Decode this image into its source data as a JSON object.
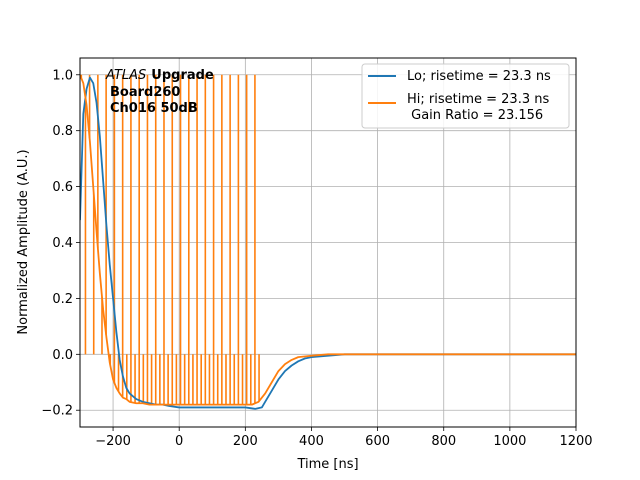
{
  "chart_data": {
    "type": "line",
    "xlabel": "Time [ns]",
    "ylabel": "Normalized Amplitude (A.U.)",
    "xlim": [
      -300,
      1200
    ],
    "ylim": [
      -0.26,
      1.06
    ],
    "xticks": [
      -200,
      0,
      200,
      400,
      600,
      800,
      1000,
      1200
    ],
    "xtick_labels": [
      "−200",
      "0",
      "200",
      "400",
      "600",
      "800",
      "1000",
      "1200"
    ],
    "yticks": [
      -0.2,
      0.0,
      0.2,
      0.4,
      0.6,
      0.8,
      1.0
    ],
    "ytick_labels": [
      "−0.2",
      "0.0",
      "0.2",
      "0.4",
      "0.6",
      "0.8",
      "1.0"
    ],
    "grid": true,
    "legend_position": "top-right",
    "annotation": {
      "italic": "ATLAS",
      "bold": "Upgrade",
      "line2": "Board260",
      "line3": "Ch016 50dB"
    },
    "series": [
      {
        "name": "Lo; risetime = 23.3 ns",
        "color": "#1f77b4",
        "x": [
          -300,
          -290,
          -280,
          -270,
          -260,
          -250,
          -240,
          -230,
          -220,
          -210,
          -200,
          -190,
          -180,
          -170,
          -160,
          -150,
          -130,
          -110,
          -90,
          -70,
          -50,
          -30,
          0,
          50,
          100,
          150,
          200,
          230,
          250,
          260,
          280,
          300,
          320,
          340,
          360,
          380,
          400,
          450,
          500,
          600,
          700,
          800,
          900,
          1000,
          1100,
          1200
        ],
        "y": [
          0.48,
          0.86,
          0.95,
          0.99,
          0.97,
          0.9,
          0.78,
          0.62,
          0.46,
          0.32,
          0.2,
          0.08,
          -0.02,
          -0.08,
          -0.12,
          -0.14,
          -0.16,
          -0.17,
          -0.175,
          -0.18,
          -0.18,
          -0.185,
          -0.19,
          -0.19,
          -0.19,
          -0.19,
          -0.19,
          -0.195,
          -0.19,
          -0.17,
          -0.13,
          -0.09,
          -0.06,
          -0.04,
          -0.025,
          -0.015,
          -0.01,
          -0.005,
          0.0,
          0.0,
          0.0,
          0.0,
          0.0,
          0.0,
          0.0,
          0.0
        ]
      },
      {
        "name": "Hi; risetime = 23.3 ns\n Gain Ratio = 23.156",
        "color": "#ff7f0e",
        "x": [
          -300,
          -290,
          -280,
          -270,
          -260,
          -250,
          -240,
          -230,
          -220,
          -210,
          -200,
          -190,
          -180,
          -170,
          -160,
          -150,
          -130,
          -110,
          -90,
          -70,
          -50,
          -30,
          0,
          50,
          100,
          150,
          200,
          220,
          240,
          260,
          280,
          300,
          320,
          340,
          360,
          400,
          450,
          500,
          600,
          700,
          800,
          900,
          1000,
          1100,
          1200
        ],
        "y": [
          1.0,
          0.97,
          0.89,
          0.76,
          0.6,
          0.44,
          0.29,
          0.16,
          0.06,
          -0.03,
          -0.09,
          -0.12,
          -0.14,
          -0.155,
          -0.16,
          -0.17,
          -0.175,
          -0.175,
          -0.18,
          -0.18,
          -0.18,
          -0.18,
          -0.18,
          -0.18,
          -0.18,
          -0.18,
          -0.18,
          -0.18,
          -0.17,
          -0.14,
          -0.1,
          -0.06,
          -0.035,
          -0.02,
          -0.01,
          -0.005,
          0.0,
          0.0,
          0.0,
          0.0,
          0.0,
          0.0,
          0.0,
          0.0,
          0.0
        ]
      }
    ],
    "hi_spikes": {
      "x_start": -296,
      "x_end": 250,
      "spacing": 12.5,
      "top": 1.0,
      "bottom": 0.0
    }
  }
}
